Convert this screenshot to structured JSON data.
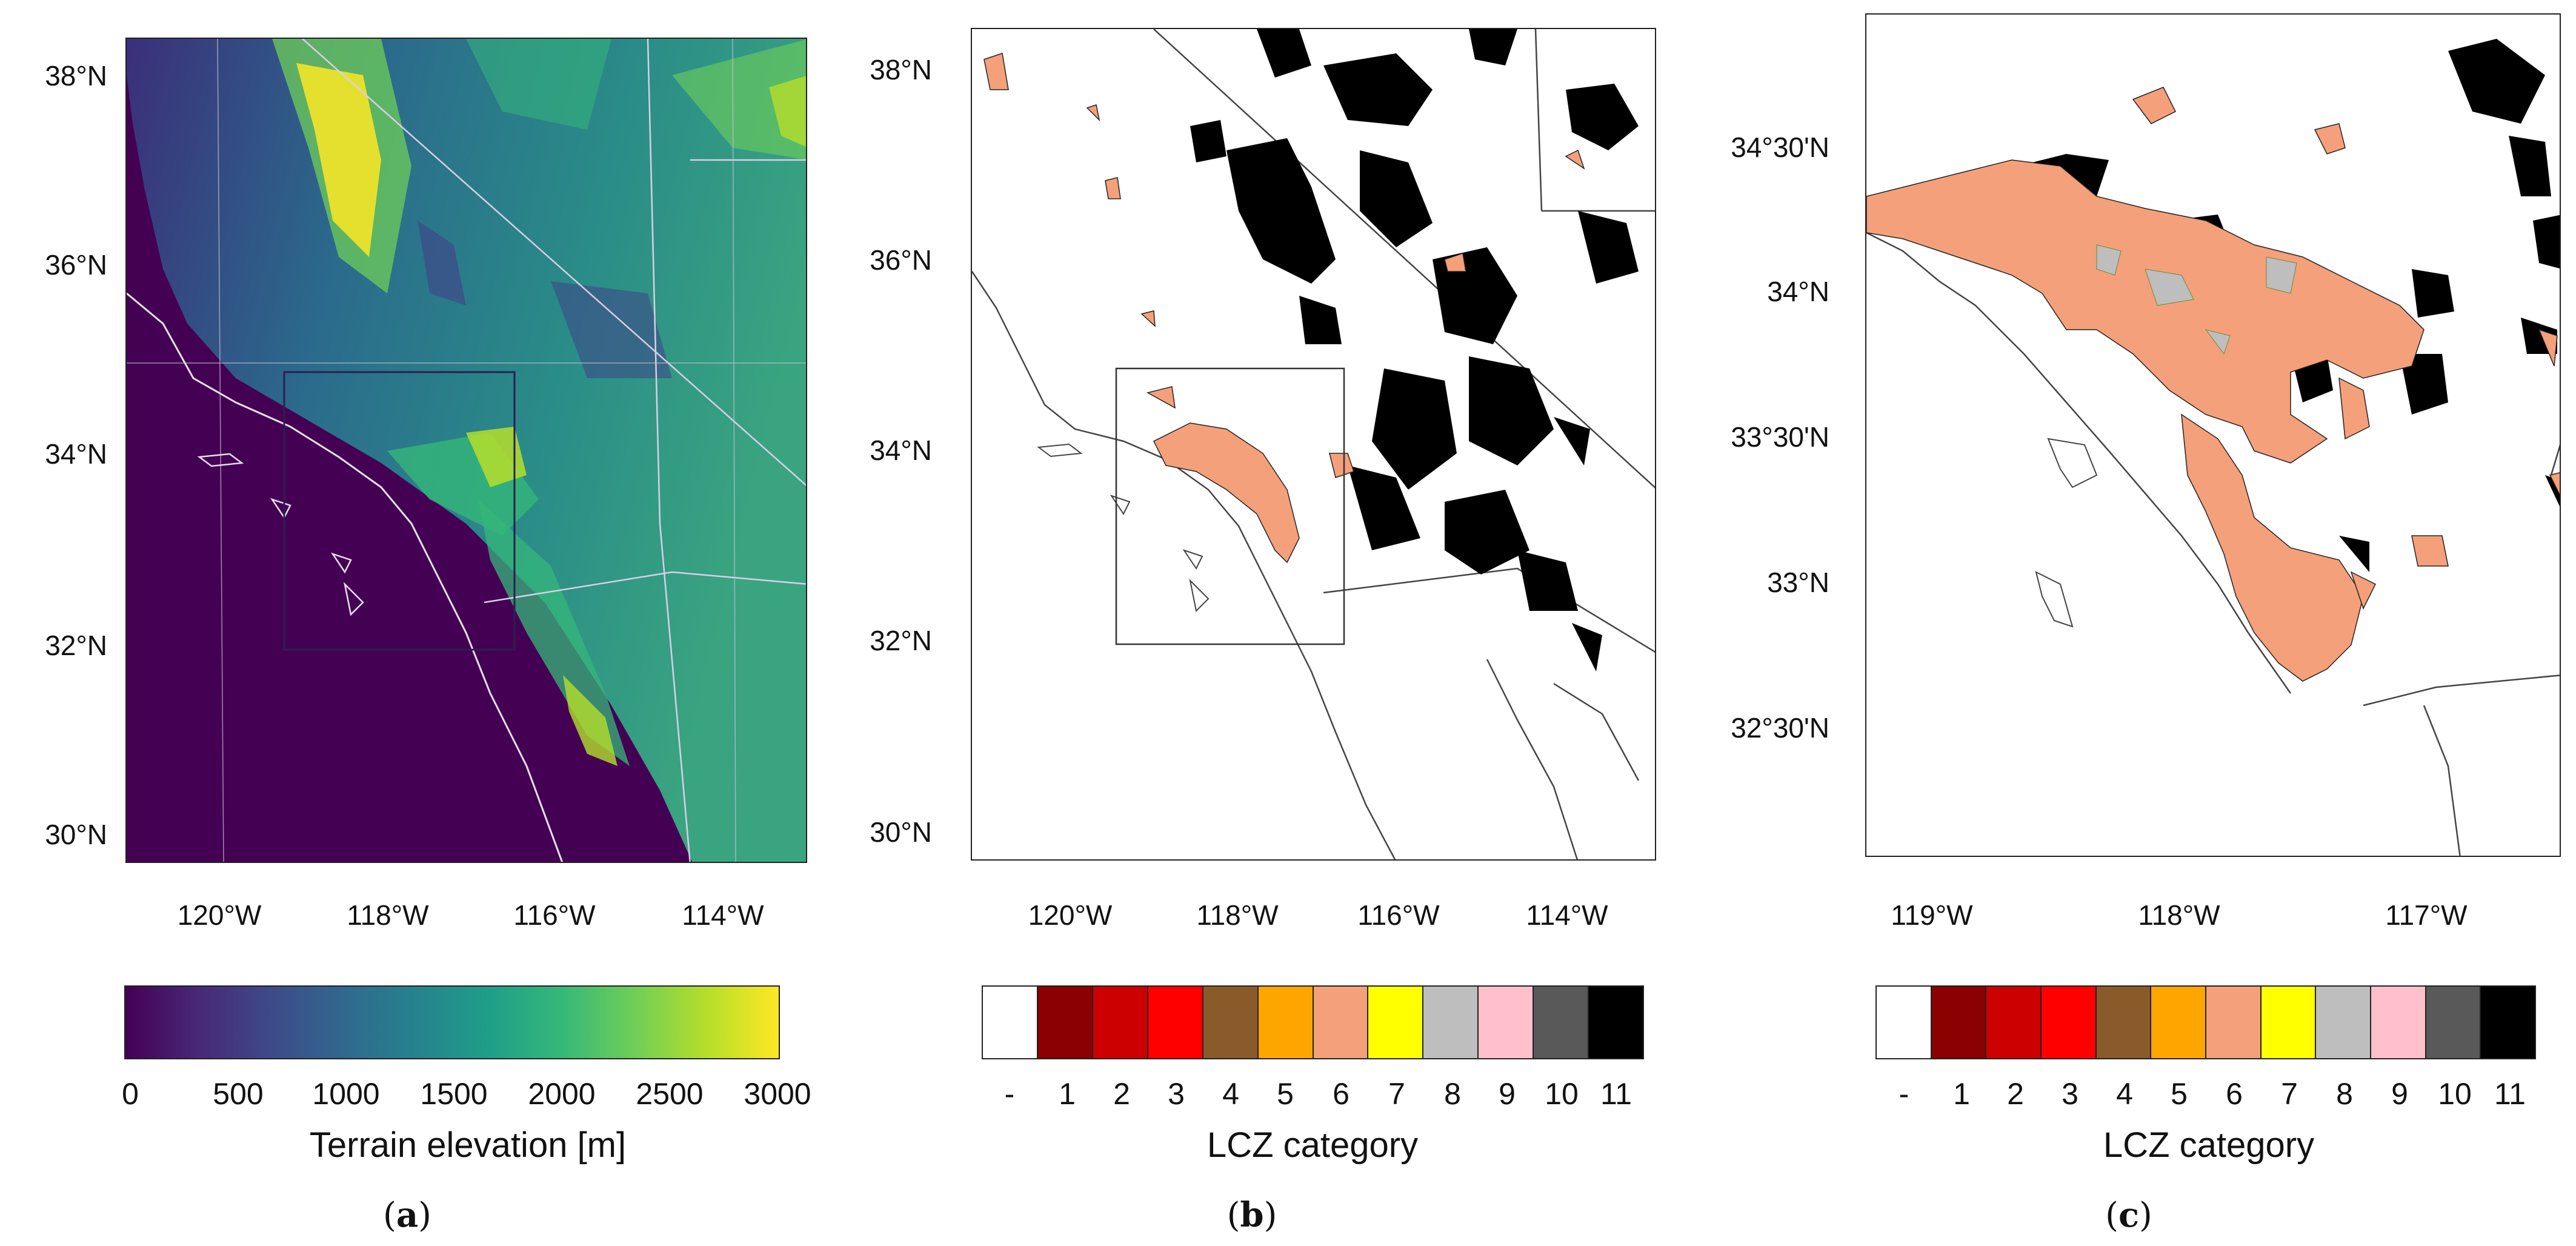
{
  "panel_a": {
    "lat_labels": [
      "38°N",
      "36°N",
      "34°N",
      "32°N",
      "30°N"
    ],
    "lon_labels": [
      "120°W",
      "118°W",
      "116°W",
      "114°W"
    ],
    "colorbar": {
      "ticks": [
        "0",
        "500",
        "1000",
        "1500",
        "2000",
        "2500",
        "3000"
      ],
      "title": "Terrain elevation [m]",
      "range": [
        0,
        3000
      ],
      "colormap": "viridis"
    },
    "caption_letter": "a"
  },
  "panel_b": {
    "lat_labels": [
      "38°N",
      "36°N",
      "34°N",
      "32°N",
      "30°N"
    ],
    "lon_labels": [
      "120°W",
      "118°W",
      "116°W",
      "114°W"
    ],
    "colorbar": {
      "ticks": [
        "-",
        "1",
        "2",
        "3",
        "4",
        "5",
        "6",
        "7",
        "8",
        "9",
        "10",
        "11"
      ],
      "title": "LCZ category"
    },
    "caption_letter": "b"
  },
  "panel_c": {
    "lat_labels": [
      "34°30'N",
      "34°N",
      "33°30'N",
      "33°N",
      "32°30'N"
    ],
    "lon_labels": [
      "119°W",
      "118°W",
      "117°W"
    ],
    "colorbar": {
      "ticks": [
        "-",
        "1",
        "2",
        "3",
        "4",
        "5",
        "6",
        "7",
        "8",
        "9",
        "10",
        "11"
      ],
      "title": "LCZ category"
    },
    "caption_letter": "c"
  },
  "lcz_colors": [
    "#ffffff",
    "#8b0000",
    "#cc0000",
    "#ff0000",
    "#8b5a2b",
    "#ffa500",
    "#f4a07a",
    "#ffff00",
    "#bebebe",
    "#ffc0cb",
    "#595959",
    "#000000"
  ],
  "viridis_stops": [
    "#440154",
    "#482878",
    "#3e4a89",
    "#31688e",
    "#26828e",
    "#1f9e89",
    "#35b779",
    "#6ece58",
    "#b5de2b",
    "#fde725"
  ]
}
